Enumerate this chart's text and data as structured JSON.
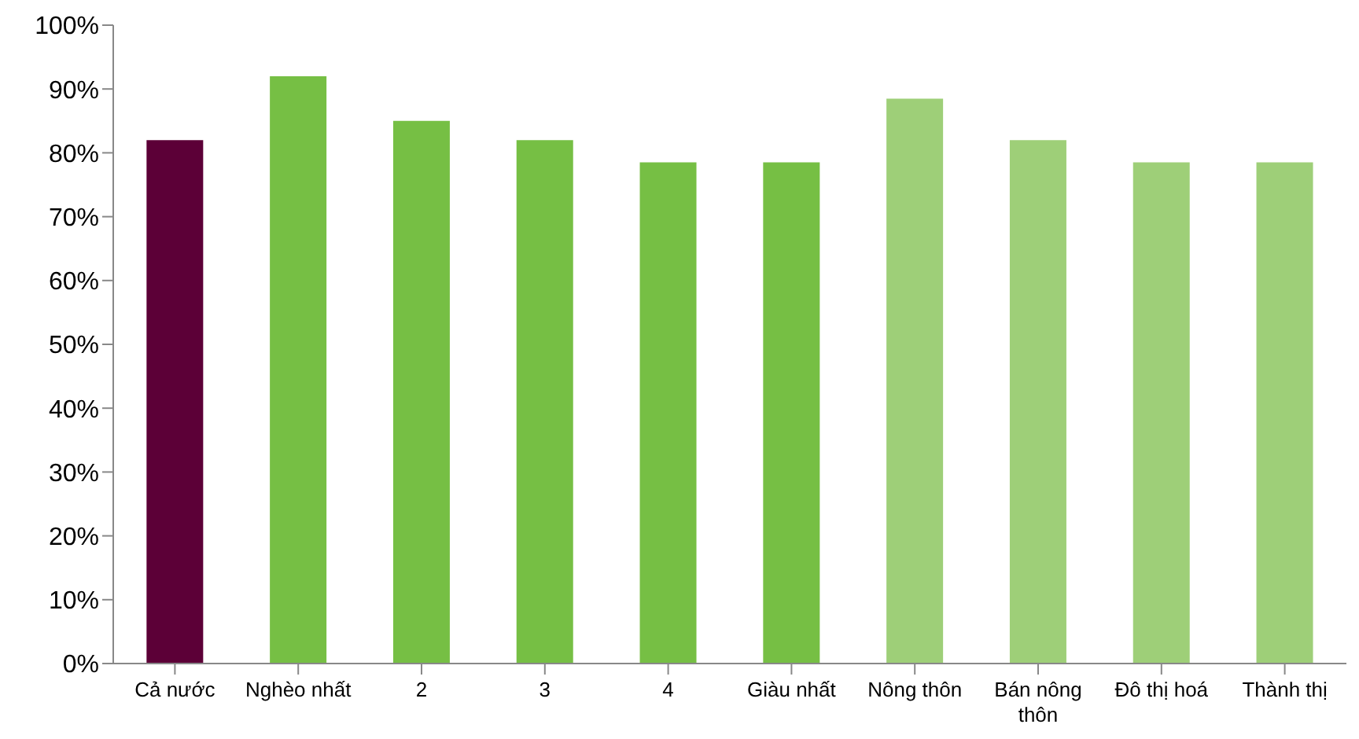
{
  "chart_data": {
    "type": "bar",
    "categories": [
      "Cả nước",
      "Nghèo nhất",
      "2",
      "3",
      "4",
      "Giàu nhất",
      "Nông thôn",
      "Bán nông thôn",
      "Đô thị hoá",
      "Thành thị"
    ],
    "values": [
      82,
      92,
      85,
      82,
      78.5,
      78.5,
      88.5,
      82,
      78.5,
      78.5
    ],
    "colors": [
      "#5c0037",
      "#76bf44",
      "#76bf44",
      "#76bf44",
      "#76bf44",
      "#76bf44",
      "#9ecf78",
      "#9ecf78",
      "#9ecf78",
      "#9ecf78"
    ],
    "ylim": [
      0,
      100
    ],
    "yticks": [
      {
        "value": 0,
        "label": "0%"
      },
      {
        "value": 10,
        "label": "10%"
      },
      {
        "value": 20,
        "label": "20%"
      },
      {
        "value": 30,
        "label": "30%"
      },
      {
        "value": 40,
        "label": "40%"
      },
      {
        "value": 50,
        "label": "50%"
      },
      {
        "value": 60,
        "label": "60%"
      },
      {
        "value": 70,
        "label": "70%"
      },
      {
        "value": 80,
        "label": "80%"
      },
      {
        "value": 90,
        "label": "90%"
      },
      {
        "value": 100,
        "label": "100%"
      }
    ],
    "grid": false
  }
}
